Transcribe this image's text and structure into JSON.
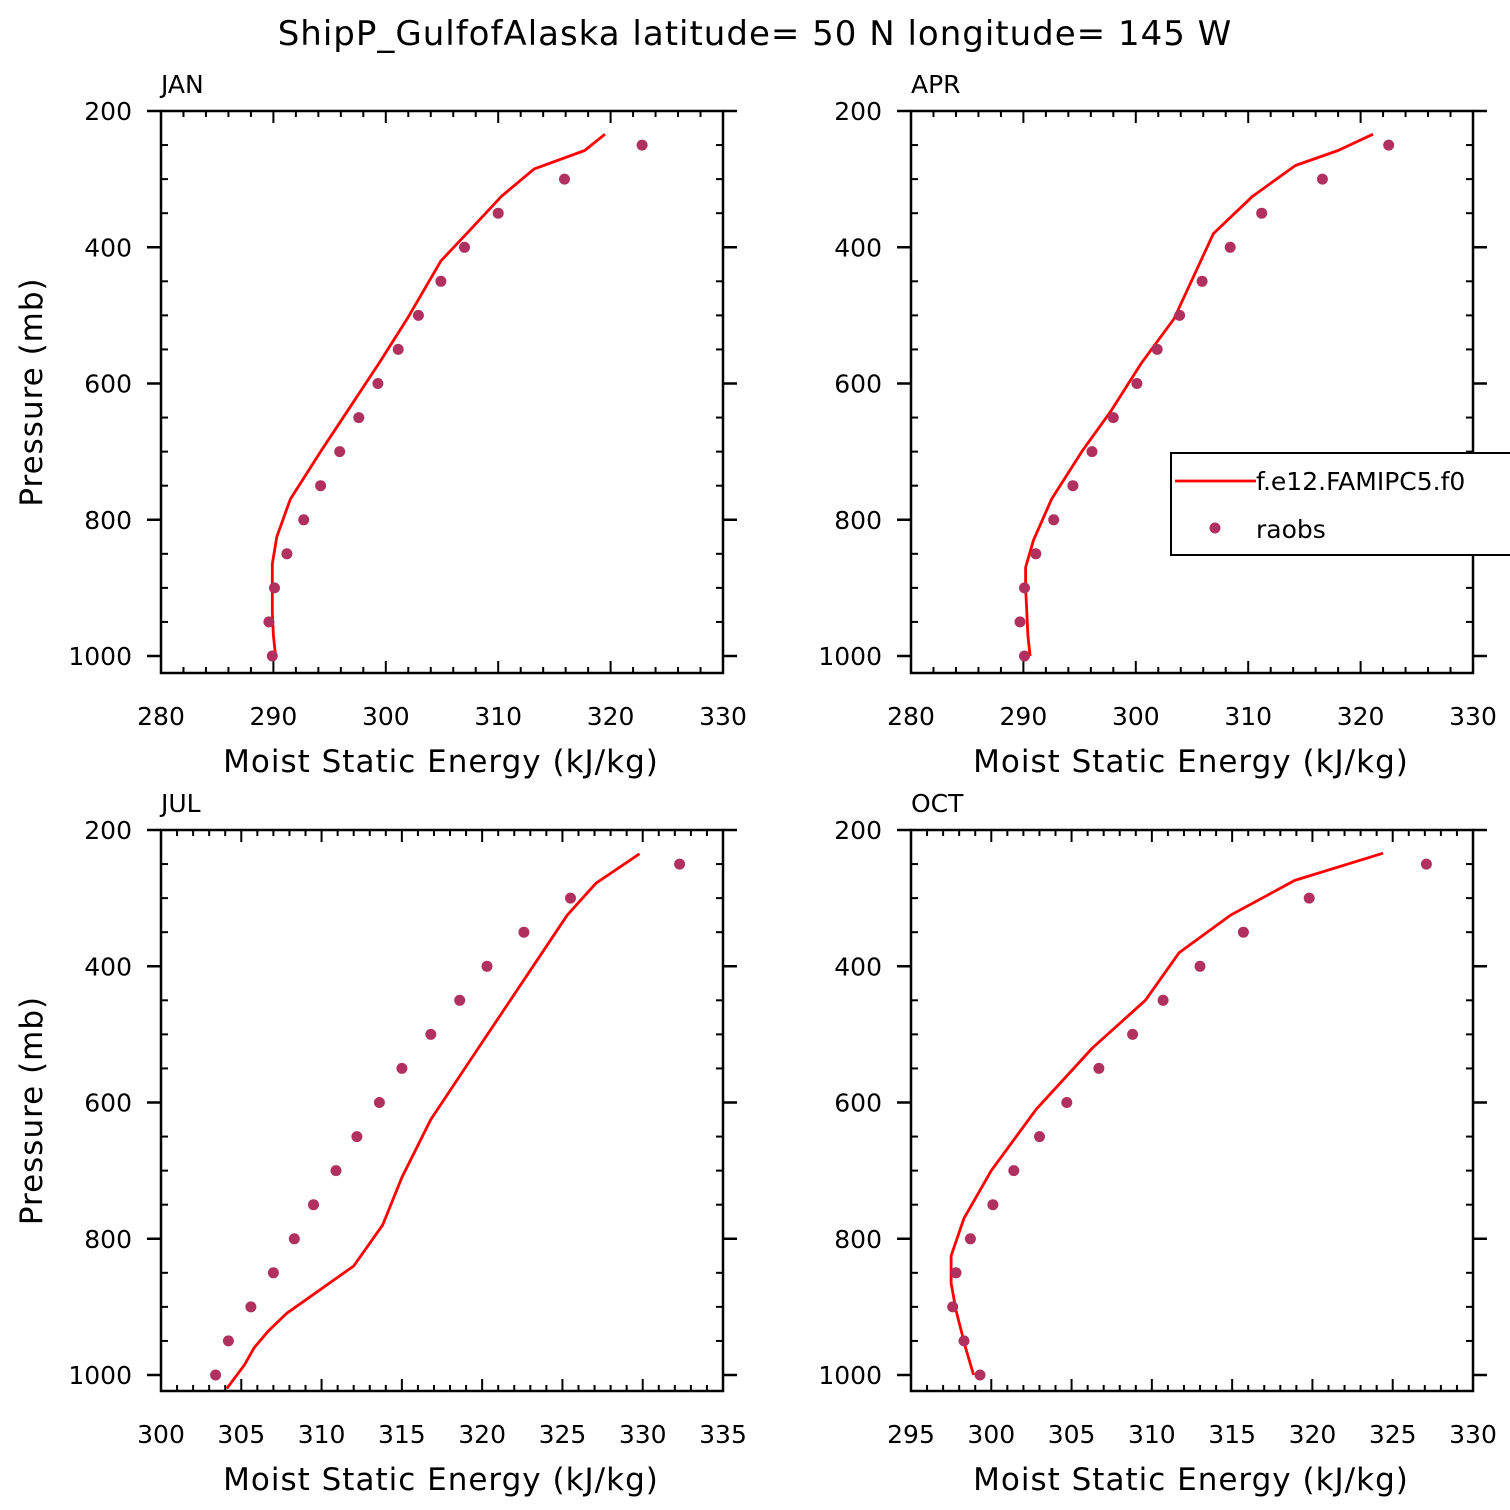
{
  "title": "ShipP_GulfofAlaska  latitude= 50 N longitude= 145 W",
  "colors": {
    "model": "#ff0000",
    "obs": "#b03060",
    "axis": "#000000"
  },
  "legend": {
    "model_label": "f.e12.FAMIPC5.f0",
    "obs_label": "raobs",
    "placement": "right-middle of APR panel"
  },
  "chart_data": [
    {
      "type": "line",
      "title": "JAN",
      "xlabel": "Moist Static Energy (kJ/kg)",
      "ylabel": "Pressure (mb)",
      "xlim": [
        280,
        330
      ],
      "ylim": [
        200,
        1025
      ],
      "y_inverted": true,
      "xticks": [
        280,
        290,
        300,
        310,
        320,
        330
      ],
      "yticks": [
        200,
        400,
        600,
        800,
        1000
      ],
      "series": [
        {
          "name": "f.e12.FAMIPC5.f0",
          "kind": "line",
          "points": [
            [
              290.2,
              1000
            ],
            [
              290.0,
              970
            ],
            [
              289.9,
              935
            ],
            [
              289.9,
              900
            ],
            [
              289.9,
              865
            ],
            [
              290.3,
              825
            ],
            [
              291.5,
              770
            ],
            [
              294.2,
              700
            ],
            [
              296.6,
              640
            ],
            [
              299.4,
              570
            ],
            [
              301.9,
              505
            ],
            [
              304.9,
              420
            ],
            [
              307.2,
              380
            ],
            [
              310.3,
              325
            ],
            [
              313.2,
              285
            ],
            [
              317.7,
              258
            ],
            [
              319.5,
              234
            ]
          ]
        },
        {
          "name": "raobs",
          "kind": "scatter",
          "points": [
            [
              289.9,
              1000
            ],
            [
              289.6,
              950
            ],
            [
              290.1,
              900
            ],
            [
              291.2,
              850
            ],
            [
              292.7,
              800
            ],
            [
              294.2,
              750
            ],
            [
              295.9,
              700
            ],
            [
              297.6,
              650
            ],
            [
              299.3,
              600
            ],
            [
              301.1,
              550
            ],
            [
              302.9,
              500
            ],
            [
              304.9,
              450
            ],
            [
              307.0,
              400
            ],
            [
              310.0,
              350
            ],
            [
              315.9,
              300
            ],
            [
              322.8,
              250
            ]
          ]
        }
      ]
    },
    {
      "type": "line",
      "title": "APR",
      "xlabel": "Moist Static Energy (kJ/kg)",
      "ylabel": "",
      "xlim": [
        280,
        330
      ],
      "ylim": [
        200,
        1025
      ],
      "y_inverted": true,
      "xticks": [
        280,
        290,
        300,
        310,
        320,
        330
      ],
      "yticks": [
        200,
        400,
        600,
        800,
        1000
      ],
      "series": [
        {
          "name": "f.e12.FAMIPC5.f0",
          "kind": "line",
          "points": [
            [
              290.6,
              1000
            ],
            [
              290.4,
              970
            ],
            [
              290.3,
              935
            ],
            [
              290.2,
              900
            ],
            [
              290.2,
              870
            ],
            [
              290.9,
              830
            ],
            [
              292.5,
              770
            ],
            [
              295.2,
              700
            ],
            [
              297.8,
              640
            ],
            [
              300.5,
              570
            ],
            [
              303.4,
              505
            ],
            [
              306.9,
              380
            ],
            [
              310.4,
              325
            ],
            [
              314.2,
              280
            ],
            [
              318.0,
              258
            ],
            [
              321.1,
              234
            ]
          ]
        },
        {
          "name": "raobs",
          "kind": "scatter",
          "points": [
            [
              290.1,
              1000
            ],
            [
              289.7,
              950
            ],
            [
              290.1,
              900
            ],
            [
              291.1,
              850
            ],
            [
              292.7,
              800
            ],
            [
              294.4,
              750
            ],
            [
              296.1,
              700
            ],
            [
              298.0,
              650
            ],
            [
              300.1,
              600
            ],
            [
              301.9,
              550
            ],
            [
              303.9,
              500
            ],
            [
              305.9,
              450
            ],
            [
              308.4,
              400
            ],
            [
              311.2,
              350
            ],
            [
              316.6,
              300
            ],
            [
              322.5,
              250
            ]
          ]
        }
      ]
    },
    {
      "type": "line",
      "title": "JUL",
      "xlabel": "Moist Static Energy (kJ/kg)",
      "ylabel": "Pressure (mb)",
      "xlim": [
        300,
        335
      ],
      "ylim": [
        200,
        1025
      ],
      "y_inverted": true,
      "xticks": [
        300,
        305,
        310,
        315,
        320,
        325,
        330,
        335
      ],
      "yticks": [
        200,
        400,
        600,
        800,
        1000
      ],
      "series": [
        {
          "name": "f.e12.FAMIPC5.f0",
          "kind": "line",
          "points": [
            [
              304.1,
              1020
            ],
            [
              305.2,
              985
            ],
            [
              305.8,
              960
            ],
            [
              306.7,
              935
            ],
            [
              307.8,
              910
            ],
            [
              312.0,
              840
            ],
            [
              313.8,
              780
            ],
            [
              315.0,
              710
            ],
            [
              316.8,
              625
            ],
            [
              319.2,
              540
            ],
            [
              325.3,
              325
            ],
            [
              327.1,
              278
            ],
            [
              329.8,
              235
            ]
          ]
        },
        {
          "name": "raobs",
          "kind": "scatter",
          "points": [
            [
              303.4,
              1000
            ],
            [
              304.2,
              950
            ],
            [
              305.6,
              900
            ],
            [
              307.0,
              850
            ],
            [
              308.3,
              800
            ],
            [
              309.5,
              750
            ],
            [
              310.9,
              700
            ],
            [
              312.2,
              650
            ],
            [
              313.6,
              600
            ],
            [
              315.0,
              550
            ],
            [
              316.8,
              500
            ],
            [
              318.6,
              450
            ],
            [
              320.3,
              400
            ],
            [
              322.6,
              350
            ],
            [
              325.5,
              300
            ],
            [
              332.3,
              250
            ]
          ]
        }
      ]
    },
    {
      "type": "line",
      "title": "OCT",
      "xlabel": "Moist Static Energy (kJ/kg)",
      "ylabel": "",
      "xlim": [
        295,
        330
      ],
      "ylim": [
        200,
        1025
      ],
      "y_inverted": true,
      "xticks": [
        295,
        300,
        305,
        310,
        315,
        320,
        325,
        330
      ],
      "yticks": [
        200,
        400,
        600,
        800,
        1000
      ],
      "series": [
        {
          "name": "f.e12.FAMIPC5.f0",
          "kind": "line",
          "points": [
            [
              298.9,
              1000
            ],
            [
              298.4,
              960
            ],
            [
              297.8,
              905
            ],
            [
              297.5,
              865
            ],
            [
              297.5,
              825
            ],
            [
              298.3,
              770
            ],
            [
              300.0,
              700
            ],
            [
              302.8,
              610
            ],
            [
              306.3,
              520
            ],
            [
              309.6,
              450
            ],
            [
              311.7,
              380
            ],
            [
              314.9,
              325
            ],
            [
              318.9,
              274
            ],
            [
              324.4,
              234
            ]
          ]
        },
        {
          "name": "raobs",
          "kind": "scatter",
          "points": [
            [
              299.3,
              1000
            ],
            [
              298.3,
              950
            ],
            [
              297.6,
              900
            ],
            [
              297.8,
              850
            ],
            [
              298.7,
              800
            ],
            [
              300.1,
              750
            ],
            [
              301.4,
              700
            ],
            [
              303.0,
              650
            ],
            [
              304.7,
              600
            ],
            [
              306.7,
              550
            ],
            [
              308.8,
              500
            ],
            [
              310.7,
              450
            ],
            [
              313.0,
              400
            ],
            [
              315.7,
              350
            ],
            [
              319.8,
              300
            ],
            [
              327.1,
              250
            ]
          ]
        }
      ]
    }
  ]
}
